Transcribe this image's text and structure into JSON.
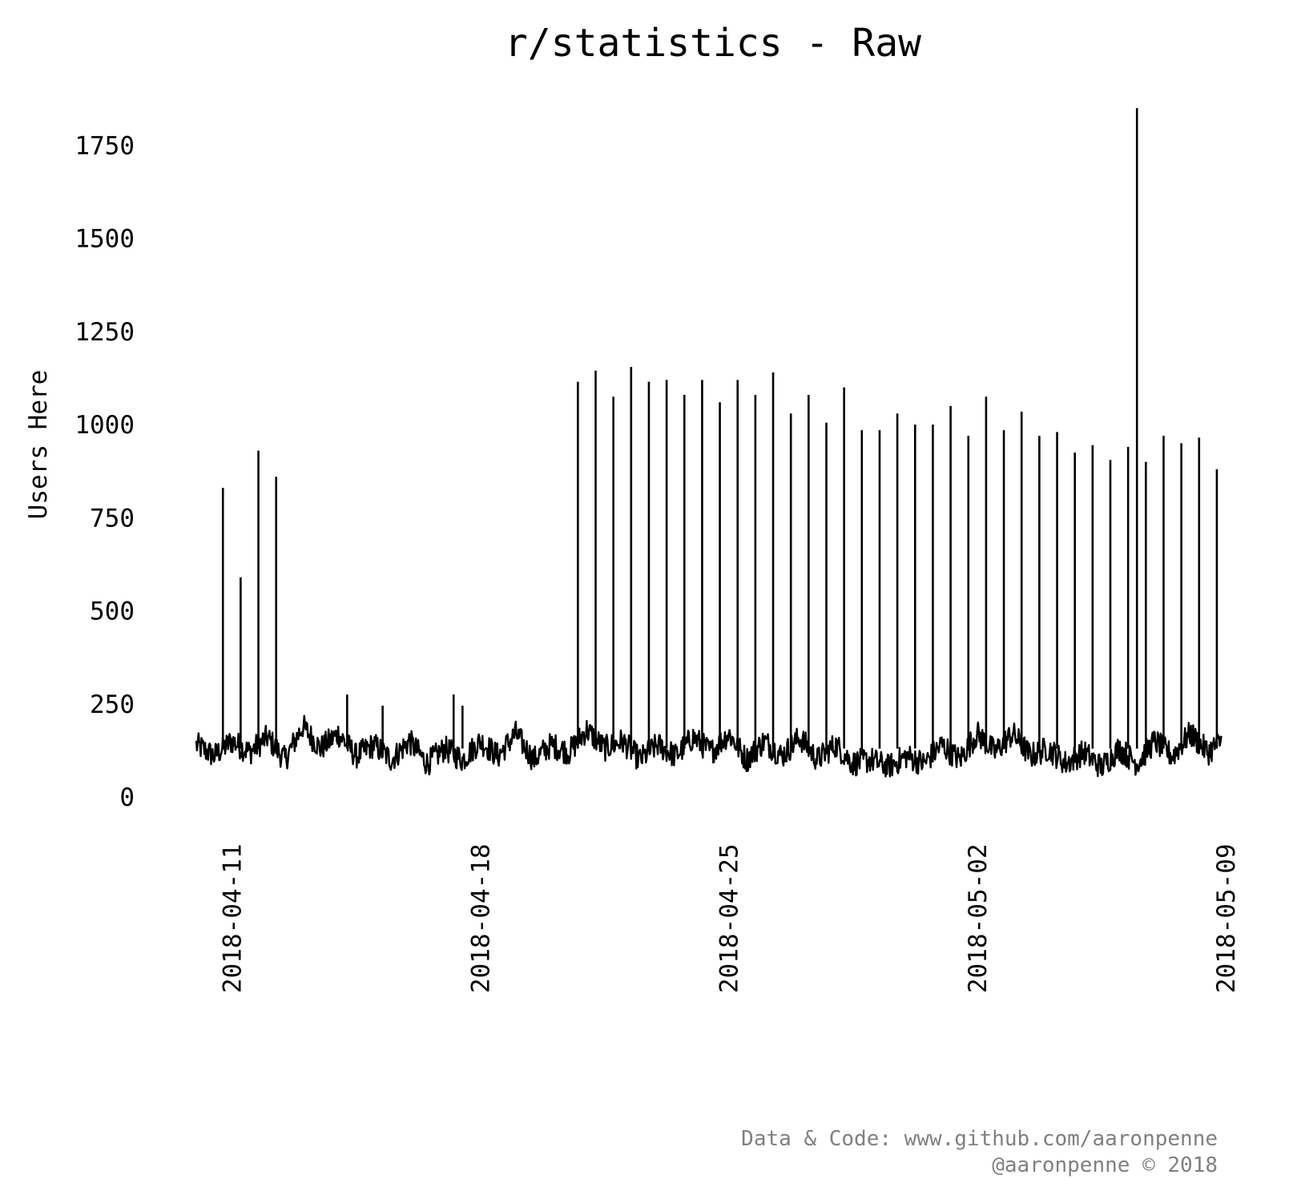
{
  "chart_data": {
    "type": "line",
    "title": "r/statistics - Raw",
    "ylabel": "Users Here",
    "xlabel": "",
    "ylim": [
      0,
      1850
    ],
    "xlim": [
      "2018-04-10",
      "2018-05-09"
    ],
    "y_ticks": [
      0,
      250,
      500,
      750,
      1000,
      1250,
      1500,
      1750
    ],
    "y_tick_labels": [
      "0",
      "250",
      "500",
      "750",
      "1000",
      "1250",
      "1500",
      "1750"
    ],
    "x_ticks": [
      "2018-04-11",
      "2018-04-18",
      "2018-04-25",
      "2018-05-02",
      "2018-05-09"
    ],
    "x_tick_labels": [
      "2018-04-11",
      "2018-04-18",
      "2018-04-25",
      "2018-05-02",
      "2018-05-09"
    ],
    "grid": false,
    "legend": "none",
    "line_color": "#000000",
    "baseline": {
      "x": [
        "2018-04-10 00:00",
        "2018-04-10 12:00",
        "2018-04-11 00:00",
        "2018-04-11 12:00",
        "2018-04-12 00:00",
        "2018-04-12 12:00",
        "2018-04-13 00:00",
        "2018-04-13 12:00",
        "2018-04-14 00:00",
        "2018-04-14 12:00",
        "2018-04-15 00:00",
        "2018-04-15 12:00",
        "2018-04-16 00:00",
        "2018-04-16 12:00",
        "2018-04-17 00:00",
        "2018-04-17 12:00",
        "2018-04-18 00:00",
        "2018-04-18 12:00",
        "2018-04-19 00:00",
        "2018-04-19 12:00",
        "2018-04-20 00:00",
        "2018-04-20 12:00",
        "2018-04-21 00:00",
        "2018-04-21 12:00",
        "2018-04-22 00:00",
        "2018-04-22 12:00",
        "2018-04-23 00:00",
        "2018-04-23 12:00",
        "2018-04-24 00:00",
        "2018-04-24 12:00",
        "2018-04-25 00:00",
        "2018-04-25 12:00",
        "2018-04-26 00:00",
        "2018-04-26 12:00",
        "2018-04-27 00:00",
        "2018-04-27 12:00",
        "2018-04-28 00:00",
        "2018-04-28 12:00",
        "2018-04-29 00:00",
        "2018-04-29 12:00",
        "2018-04-30 00:00",
        "2018-04-30 12:00",
        "2018-05-01 00:00",
        "2018-05-01 12:00",
        "2018-05-02 00:00",
        "2018-05-02 12:00",
        "2018-05-03 00:00",
        "2018-05-03 12:00",
        "2018-05-04 00:00",
        "2018-05-04 12:00",
        "2018-05-05 00:00",
        "2018-05-05 12:00",
        "2018-05-06 00:00",
        "2018-05-06 12:00",
        "2018-05-07 00:00",
        "2018-05-07 12:00",
        "2018-05-08 00:00",
        "2018-05-08 12:00",
        "2018-05-09 00:00"
      ],
      "y": [
        140,
        110,
        150,
        120,
        160,
        100,
        190,
        130,
        170,
        110,
        140,
        100,
        150,
        90,
        130,
        100,
        150,
        110,
        170,
        100,
        140,
        120,
        180,
        130,
        150,
        100,
        140,
        110,
        160,
        120,
        170,
        100,
        150,
        110,
        160,
        100,
        140,
        90,
        100,
        80,
        110,
        90,
        140,
        100,
        170,
        120,
        170,
        110,
        130,
        90,
        120,
        80,
        130,
        90,
        150,
        110,
        170,
        120,
        160
      ]
    },
    "spikes": {
      "x": [
        "2018-04-10 18:00",
        "2018-04-11 06:00",
        "2018-04-11 18:00",
        "2018-04-12 06:00",
        "2018-04-14 06:00",
        "2018-04-15 06:00",
        "2018-04-17 06:00",
        "2018-04-17 12:00",
        "2018-04-20 18:00",
        "2018-04-21 06:00",
        "2018-04-21 18:00",
        "2018-04-22 06:00",
        "2018-04-22 18:00",
        "2018-04-23 06:00",
        "2018-04-23 18:00",
        "2018-04-24 06:00",
        "2018-04-24 18:00",
        "2018-04-25 06:00",
        "2018-04-25 18:00",
        "2018-04-26 06:00",
        "2018-04-26 18:00",
        "2018-04-27 06:00",
        "2018-04-27 18:00",
        "2018-04-28 06:00",
        "2018-04-28 18:00",
        "2018-04-29 06:00",
        "2018-04-29 18:00",
        "2018-04-30 06:00",
        "2018-04-30 18:00",
        "2018-05-01 06:00",
        "2018-05-01 18:00",
        "2018-05-02 06:00",
        "2018-05-02 18:00",
        "2018-05-03 06:00",
        "2018-05-03 18:00",
        "2018-05-04 06:00",
        "2018-05-04 18:00",
        "2018-05-05 06:00",
        "2018-05-05 18:00",
        "2018-05-06 06:00",
        "2018-05-06 12:00",
        "2018-05-06 18:00",
        "2018-05-07 06:00",
        "2018-05-07 18:00",
        "2018-05-08 06:00",
        "2018-05-08 18:00"
      ],
      "y": [
        830,
        590,
        930,
        860,
        275,
        245,
        275,
        245,
        1115,
        1145,
        1075,
        1155,
        1115,
        1120,
        1080,
        1120,
        1060,
        1120,
        1080,
        1140,
        1030,
        1080,
        1005,
        1100,
        985,
        985,
        1030,
        1000,
        1000,
        1050,
        970,
        1075,
        985,
        1035,
        970,
        980,
        925,
        945,
        905,
        940,
        1850,
        900,
        970,
        950,
        965,
        880
      ]
    }
  },
  "credits": {
    "line1": "Data & Code: www.github.com/aaronpenne",
    "line2": "@aaronpenne © 2018"
  }
}
